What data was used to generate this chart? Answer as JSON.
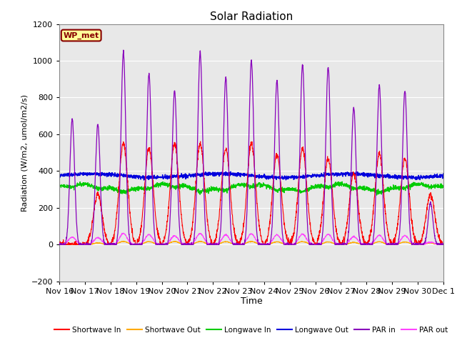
{
  "title": "Solar Radiation",
  "ylabel": "Radiation (W/m2, umol/m2/s)",
  "xlabel": "Time",
  "ylim": [
    -200,
    1200
  ],
  "yticks": [
    -200,
    0,
    200,
    400,
    600,
    800,
    1000,
    1200
  ],
  "date_labels": [
    "Nov 16",
    "Nov 17",
    "Nov 18",
    "Nov 19",
    "Nov 20",
    "Nov 21",
    "Nov 22",
    "Nov 23",
    "Nov 24",
    "Nov 25",
    "Nov 26",
    "Nov 27",
    "Nov 28",
    "Nov 29",
    "Nov 30",
    "Dec 1"
  ],
  "colors": {
    "shortwave_in": "#ff0000",
    "shortwave_out": "#ffaa00",
    "longwave_in": "#00cc00",
    "longwave_out": "#0000dd",
    "par_in": "#8800bb",
    "par_out": "#ff44ff"
  },
  "legend_labels": [
    "Shortwave In",
    "Shortwave Out",
    "Longwave In",
    "Longwave Out",
    "PAR in",
    "PAR out"
  ],
  "annotation_text": "WP_met",
  "annotation_color": "#880000",
  "annotation_bg": "#ffff99",
  "plot_bg": "#e8e8e8",
  "n_days": 15,
  "points_per_day": 144,
  "sw_in_peaks": [
    0.0,
    0.5,
    1.0,
    0.95,
    1.0,
    1.0,
    0.95,
    1.0,
    0.9,
    0.95,
    0.85,
    0.7,
    0.9,
    0.85,
    0.5
  ],
  "par_in_peaks": [
    0.75,
    0.72,
    1.15,
    1.02,
    0.92,
    1.15,
    1.0,
    1.1,
    0.98,
    1.08,
    1.06,
    0.82,
    0.95,
    0.92,
    0.25
  ],
  "lw_in_base": 315,
  "lw_out_base": 375,
  "figsize": [
    6.4,
    4.8
  ],
  "dpi": 100
}
